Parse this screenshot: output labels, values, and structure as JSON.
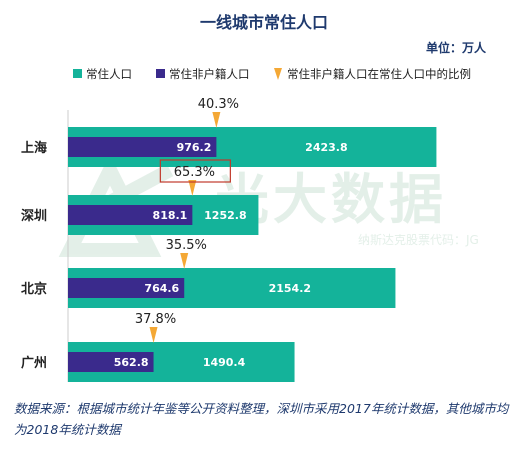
{
  "chart_data": {
    "type": "bar",
    "title": "一线城市常住人口",
    "unit_label": "单位：万人",
    "categories": [
      "上海",
      "深圳",
      "北京",
      "广州"
    ],
    "series": [
      {
        "name": "常住人口",
        "color": "#14b39a",
        "values": [
          2423.8,
          1252.8,
          2154.2,
          1490.4
        ]
      },
      {
        "name": "常住非户籍人口",
        "color": "#3a2a8c",
        "values": [
          976.2,
          818.1,
          764.6,
          562.8
        ]
      }
    ],
    "ratio_series": {
      "name": "常住非户籍人口在常住人口中的比例",
      "color": "#f4a835",
      "values": [
        "40.3%",
        "65.3%",
        "35.5%",
        "37.8%"
      ]
    },
    "highlighted_category": "深圳",
    "highlight_color": "#c0392b",
    "xlim": [
      0,
      2500
    ],
    "grid": false,
    "legend_position": "top"
  },
  "watermark": {
    "text": "光大数据",
    "subtext": "纳斯达克股票代码：JG"
  },
  "source_note": "数据来源：根据城市统计年鉴等公开资料整理，深圳市采用2017年统计数据，其他城市均为2018年统计数据"
}
